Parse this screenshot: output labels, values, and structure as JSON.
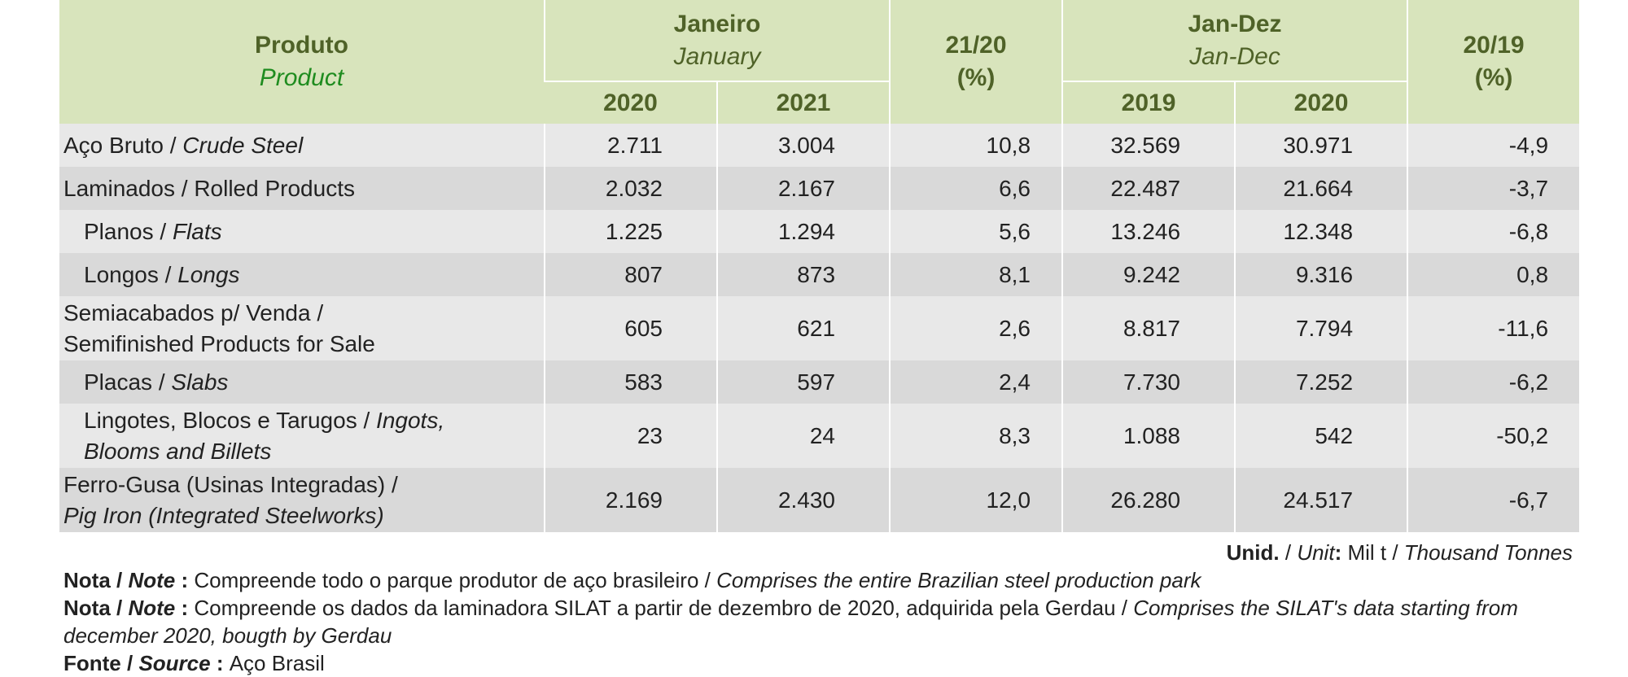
{
  "header": {
    "product_pt": "Produto",
    "product_en": "Product",
    "january_pt": "Janeiro",
    "january_en": "January",
    "year_2020": "2020",
    "year_2021": "2021",
    "var_21_20_a": "21/20",
    "var_21_20_b": "(%)",
    "jandez_pt": "Jan-Dez",
    "jandez_en": "Jan-Dec",
    "year_2019": "2019",
    "year_2020b": "2020",
    "var_20_19_a": "20/19",
    "var_20_19_b": "(%)"
  },
  "rows": [
    {
      "name_pt": "Aço Bruto / ",
      "name_en": "Crude Steel",
      "jan2020": "2.711",
      "jan2021": "3.004",
      "var2120": "10,8",
      "jd2019": "32.569",
      "jd2020": "30.971",
      "var2019": "-4,9"
    },
    {
      "name_pt": "Laminados / Rolled Products",
      "name_en": "",
      "jan2020": "2.032",
      "jan2021": "2.167",
      "var2120": "6,6",
      "jd2019": "22.487",
      "jd2020": "21.664",
      "var2019": "-3,7"
    },
    {
      "name_pt": "Planos / ",
      "name_en": "Flats",
      "jan2020": "1.225",
      "jan2021": "1.294",
      "var2120": "5,6",
      "jd2019": "13.246",
      "jd2020": "12.348",
      "var2019": "-6,8"
    },
    {
      "name_pt": "Longos / ",
      "name_en": "Longs",
      "jan2020": "807",
      "jan2021": "873",
      "var2120": "8,1",
      "jd2019": "9.242",
      "jd2020": "9.316",
      "var2019": "0,8"
    },
    {
      "name_line1": "Semiacabados p/ Venda /",
      "name_line2": "Semifinished Products for Sale",
      "jan2020": "605",
      "jan2021": "621",
      "var2120": "2,6",
      "jd2019": "8.817",
      "jd2020": "7.794",
      "var2019": "-11,6"
    },
    {
      "name_pt": "Placas / ",
      "name_en": "Slabs",
      "jan2020": "583",
      "jan2021": "597",
      "var2120": "2,4",
      "jd2019": "7.730",
      "jd2020": "7.252",
      "var2019": "-6,2"
    },
    {
      "name_line1_pt": "Lingotes, Blocos e Tarugos / ",
      "name_line1_en": "Ingots,",
      "name_line2": "Blooms and Billets",
      "jan2020": "23",
      "jan2021": "24",
      "var2120": "8,3",
      "jd2019": "1.088",
      "jd2020": "542",
      "var2019": "-50,2"
    },
    {
      "name_line1": "Ferro-Gusa (Usinas Integradas) /",
      "name_line2": "Pig Iron (Integrated Steelworks)",
      "jan2020": "2.169",
      "jan2021": "2.430",
      "var2120": "12,0",
      "jd2019": "26.280",
      "jd2020": "24.517",
      "var2019": "-6,7"
    }
  ],
  "unit": {
    "label_pt": "Unid.",
    "sep": " / ",
    "label_en": "Unit",
    "colon": ": ",
    "value_pt": "Mil t",
    "value_sep": " / ",
    "value_en": "Thousand Tonnes"
  },
  "notes": [
    {
      "label_pt": "Nota",
      "label_en": "Note",
      "text_pt": "Compreende todo o parque produtor de aço brasileiro / ",
      "text_en": "Comprises the entire Brazilian steel production park"
    },
    {
      "label_pt": "Nota",
      "label_en": "Note",
      "text_pt": "Compreende os dados da laminadora SILAT a partir de dezembro de 2020, adquirida pela Gerdau / ",
      "text_en": "Comprises the SILAT's data starting from december 2020, bougth by Gerdau"
    },
    {
      "label_pt": "Fonte",
      "label_en": "Source",
      "text_pt": "Aço Brasil",
      "text_en": ""
    }
  ]
}
